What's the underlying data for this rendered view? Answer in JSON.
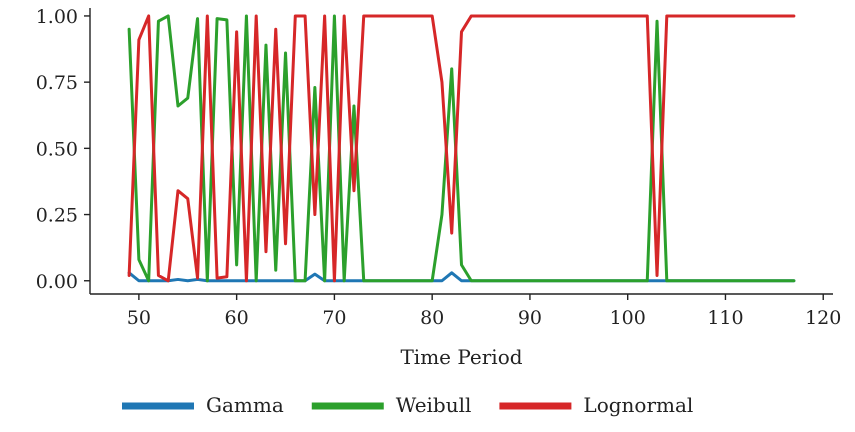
{
  "chart_data": {
    "type": "line",
    "xlabel": "Time Period",
    "ylabel": "",
    "xlim": [
      45,
      121
    ],
    "ylim": [
      -0.05,
      1.03
    ],
    "x_ticks": [
      50,
      60,
      70,
      80,
      90,
      100,
      110,
      120
    ],
    "y_ticks": [
      0.0,
      0.25,
      0.5,
      0.75,
      1.0
    ],
    "y_tick_labels": [
      "0.00",
      "0.25",
      "0.50",
      "0.75",
      "1.00"
    ],
    "legend_position": "bottom-center",
    "series": [
      {
        "name": "Gamma",
        "color": "#1f77b4",
        "points": [
          [
            49,
            0.03
          ],
          [
            50,
            0.0
          ],
          [
            53,
            0.0
          ],
          [
            54,
            0.005
          ],
          [
            55,
            0.0
          ],
          [
            56,
            0.005
          ],
          [
            57,
            0.0
          ],
          [
            67,
            0.0
          ],
          [
            68,
            0.025
          ],
          [
            69,
            0.0
          ],
          [
            81,
            0.0
          ],
          [
            82,
            0.03
          ],
          [
            83,
            0.0
          ],
          [
            117,
            0.0
          ]
        ]
      },
      {
        "name": "Weibull",
        "color": "#2ca02c",
        "points": [
          [
            49,
            0.95
          ],
          [
            50,
            0.08
          ],
          [
            51,
            0.0
          ],
          [
            52,
            0.98
          ],
          [
            53,
            1.0
          ],
          [
            54,
            0.66
          ],
          [
            55,
            0.69
          ],
          [
            56,
            0.99
          ],
          [
            57,
            0.0
          ],
          [
            58,
            0.99
          ],
          [
            59,
            0.985
          ],
          [
            60,
            0.06
          ],
          [
            61,
            1.0
          ],
          [
            62,
            0.0
          ],
          [
            63,
            0.89
          ],
          [
            64,
            0.04
          ],
          [
            65,
            0.86
          ],
          [
            66,
            0.0
          ],
          [
            67,
            0.0
          ],
          [
            68,
            0.73
          ],
          [
            69,
            0.0
          ],
          [
            70,
            1.0
          ],
          [
            71,
            0.0
          ],
          [
            72,
            0.66
          ],
          [
            73,
            0.0
          ],
          [
            80,
            0.0
          ],
          [
            81,
            0.25
          ],
          [
            82,
            0.8
          ],
          [
            83,
            0.06
          ],
          [
            84,
            0.0
          ],
          [
            102,
            0.0
          ],
          [
            103,
            0.98
          ],
          [
            104,
            0.0
          ],
          [
            117,
            0.0
          ]
        ]
      },
      {
        "name": "Lognormal",
        "color": "#d62728",
        "points": [
          [
            49,
            0.02
          ],
          [
            50,
            0.91
          ],
          [
            51,
            1.0
          ],
          [
            52,
            0.02
          ],
          [
            53,
            0.0
          ],
          [
            54,
            0.34
          ],
          [
            55,
            0.31
          ],
          [
            56,
            0.01
          ],
          [
            57,
            1.0
          ],
          [
            58,
            0.01
          ],
          [
            59,
            0.015
          ],
          [
            60,
            0.94
          ],
          [
            61,
            0.0
          ],
          [
            62,
            1.0
          ],
          [
            63,
            0.11
          ],
          [
            64,
            0.95
          ],
          [
            65,
            0.14
          ],
          [
            66,
            1.0
          ],
          [
            67,
            1.0
          ],
          [
            68,
            0.25
          ],
          [
            69,
            1.0
          ],
          [
            70,
            0.0
          ],
          [
            71,
            1.0
          ],
          [
            72,
            0.34
          ],
          [
            73,
            1.0
          ],
          [
            80,
            1.0
          ],
          [
            81,
            0.75
          ],
          [
            82,
            0.18
          ],
          [
            83,
            0.94
          ],
          [
            84,
            1.0
          ],
          [
            102,
            1.0
          ],
          [
            103,
            0.02
          ],
          [
            104,
            1.0
          ],
          [
            117,
            1.0
          ]
        ]
      }
    ]
  }
}
